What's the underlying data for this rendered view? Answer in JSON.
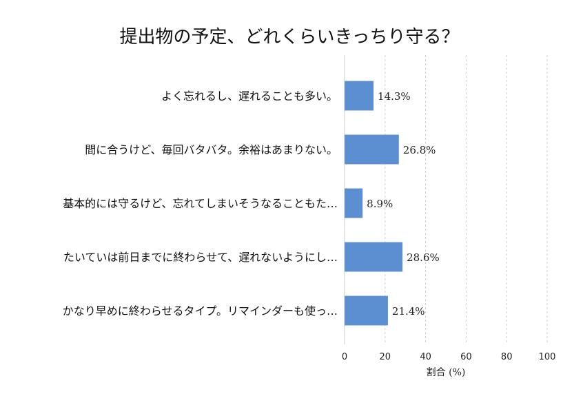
{
  "chart_data": {
    "type": "bar",
    "orientation": "horizontal",
    "title": "提出物の予定、どれくらいきっちり守る？",
    "xlabel": "割合 (%)",
    "ylabel": "",
    "xlim": [
      0,
      100
    ],
    "xticks": [
      0,
      20,
      40,
      60,
      80,
      100
    ],
    "grid": true,
    "bar_color": "#5b8fd1",
    "categories": [
      "よく忘れるし、遅れることも多い。",
      "間に合うけど、毎回バタバタ。余裕はあまりない。",
      "基本的には守るけど、忘れてしまいそうなることもた…",
      "たいていは前日までに終わらせて、遅れないようにし…",
      "かなり早めに終わらせるタイプ。リマインダーも使っ…"
    ],
    "values": [
      14.3,
      26.8,
      8.9,
      28.6,
      21.4
    ],
    "value_labels": [
      "14.3%",
      "26.8%",
      "8.9%",
      "28.6%",
      "21.4%"
    ]
  }
}
